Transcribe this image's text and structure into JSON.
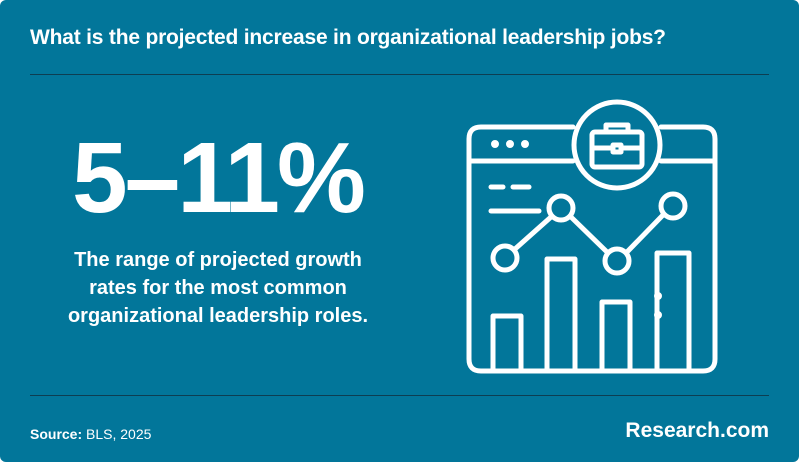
{
  "title": "What is the projected increase in organizational leadership jobs?",
  "stat": {
    "value": "5–11%",
    "description": "The range of projected growth rates for the most common organizational leadership roles."
  },
  "source": {
    "label": "Source:",
    "value": "BLS, 2025"
  },
  "brand": "Research.com",
  "illustration": {
    "icon": "browser-chart-briefcase-icon"
  },
  "colors": {
    "background": "#02769A",
    "text": "#FFFFFF",
    "divider": "#0D3E52"
  }
}
